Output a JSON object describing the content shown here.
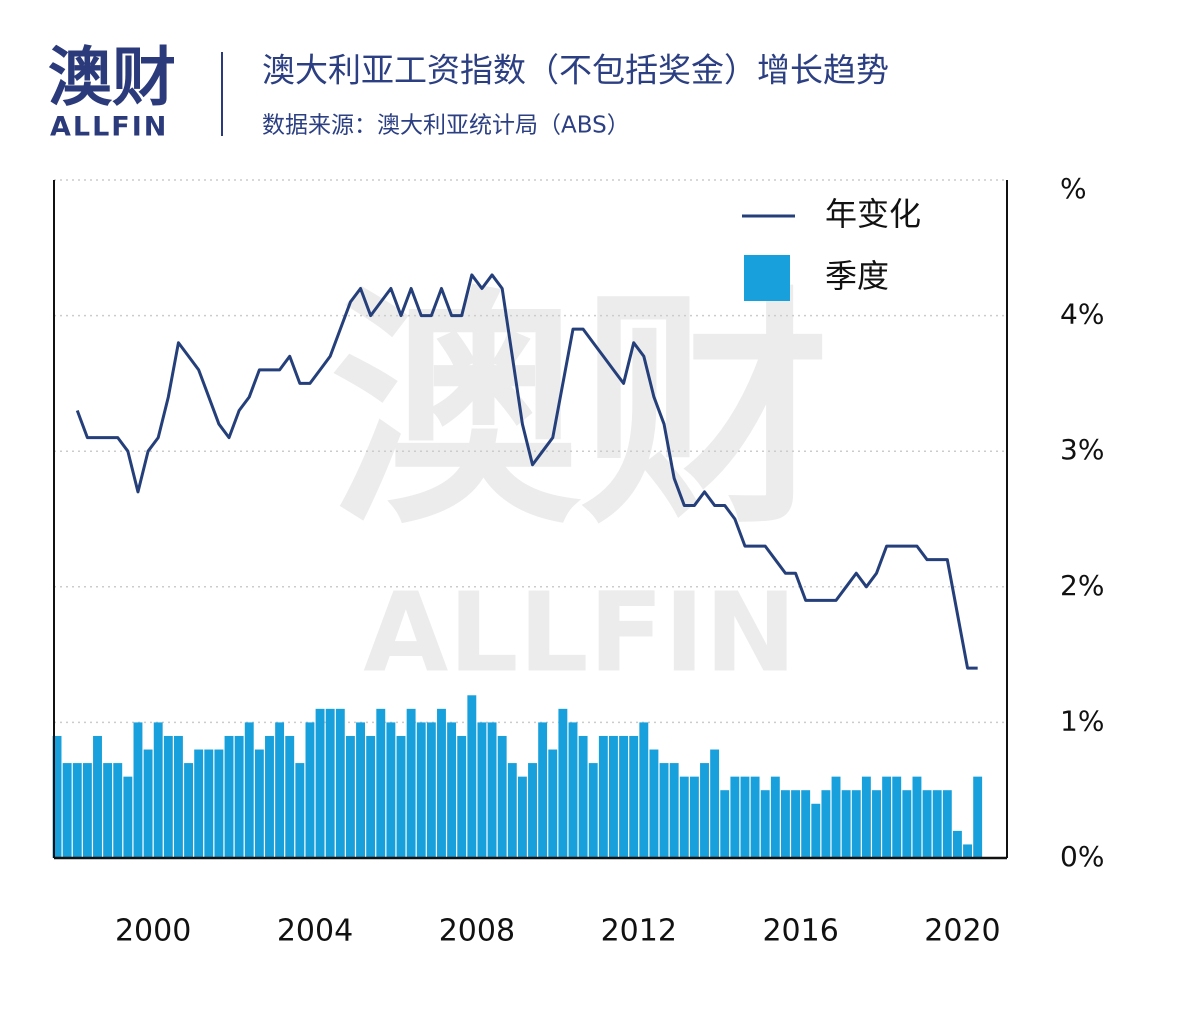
{
  "logo": {
    "name": "澳财",
    "brand": "ALLFIN"
  },
  "chart_data": {
    "type": "bar",
    "title": "澳大利亚工资指数（不包括奖金）增长趋势",
    "subtitle": "数据来源：澳大利亚统计局（ABS）",
    "y_label": "%",
    "x": [
      1997.625,
      1997.875,
      1998.125,
      1998.375,
      1998.625,
      1998.875,
      1999.125,
      1999.375,
      1999.625,
      1999.875,
      2000.125,
      2000.375,
      2000.625,
      2000.875,
      2001.125,
      2001.375,
      2001.625,
      2001.875,
      2002.125,
      2002.375,
      2002.625,
      2002.875,
      2003.125,
      2003.375,
      2003.625,
      2003.875,
      2004.125,
      2004.375,
      2004.625,
      2004.875,
      2005.125,
      2005.375,
      2005.625,
      2005.875,
      2006.125,
      2006.375,
      2006.625,
      2006.875,
      2007.125,
      2007.375,
      2007.625,
      2007.875,
      2008.125,
      2008.375,
      2008.625,
      2008.875,
      2009.125,
      2009.375,
      2009.625,
      2009.875,
      2010.125,
      2010.375,
      2010.625,
      2010.875,
      2011.125,
      2011.375,
      2011.625,
      2011.875,
      2012.125,
      2012.375,
      2012.625,
      2012.875,
      2013.125,
      2013.375,
      2013.625,
      2013.875,
      2014.125,
      2014.375,
      2014.625,
      2014.875,
      2015.125,
      2015.375,
      2015.625,
      2015.875,
      2016.125,
      2016.375,
      2016.625,
      2016.875,
      2017.125,
      2017.375,
      2017.625,
      2017.875,
      2018.125,
      2018.375,
      2018.625,
      2018.875,
      2019.125,
      2019.375,
      2019.625,
      2019.875,
      2020.125,
      2020.375
    ],
    "series": [
      {
        "name": "年变化",
        "type": "line",
        "color": "#253f7a",
        "values": [
          null,
          null,
          3.3,
          3.1,
          3.1,
          3.1,
          3.1,
          3.0,
          2.7,
          3.0,
          3.1,
          3.4,
          3.8,
          3.7,
          3.6,
          3.4,
          3.2,
          3.1,
          3.3,
          3.4,
          3.6,
          3.6,
          3.6,
          3.7,
          3.5,
          3.5,
          3.6,
          3.7,
          3.9,
          4.1,
          4.2,
          4.0,
          4.1,
          4.2,
          4.0,
          4.2,
          4.0,
          4.0,
          4.2,
          4.0,
          4.0,
          4.3,
          4.2,
          4.3,
          4.2,
          3.7,
          3.2,
          2.9,
          3.0,
          3.1,
          3.5,
          3.9,
          3.9,
          3.8,
          3.7,
          3.6,
          3.5,
          3.8,
          3.7,
          3.4,
          3.2,
          2.8,
          2.6,
          2.6,
          2.7,
          2.6,
          2.6,
          2.5,
          2.3,
          2.3,
          2.3,
          2.2,
          2.1,
          2.1,
          1.9,
          1.9,
          1.9,
          1.9,
          2.0,
          2.1,
          2.0,
          2.1,
          2.3,
          2.3,
          2.3,
          2.3,
          2.2,
          2.2,
          2.2,
          1.8,
          1.4,
          1.4
        ]
      },
      {
        "name": "季度",
        "type": "bar",
        "color": "#17a0db",
        "values": [
          0.9,
          0.7,
          0.7,
          0.7,
          0.9,
          0.7,
          0.7,
          0.6,
          1.0,
          0.8,
          1.0,
          0.9,
          0.9,
          0.7,
          0.8,
          0.8,
          0.8,
          0.9,
          0.9,
          1.0,
          0.8,
          0.9,
          1.0,
          0.9,
          0.7,
          1.0,
          1.1,
          1.1,
          1.1,
          0.9,
          1.0,
          0.9,
          1.1,
          1.0,
          0.9,
          1.1,
          1.0,
          1.0,
          1.1,
          1.0,
          0.9,
          1.2,
          1.0,
          1.0,
          0.9,
          0.7,
          0.6,
          0.7,
          1.0,
          0.8,
          1.1,
          1.0,
          0.9,
          0.7,
          0.9,
          0.9,
          0.9,
          0.9,
          1.0,
          0.8,
          0.7,
          0.7,
          0.6,
          0.6,
          0.7,
          0.8,
          0.5,
          0.6,
          0.6,
          0.6,
          0.5,
          0.6,
          0.5,
          0.5,
          0.5,
          0.4,
          0.5,
          0.6,
          0.5,
          0.5,
          0.6,
          0.5,
          0.6,
          0.6,
          0.5,
          0.6,
          0.5,
          0.5,
          0.5,
          0.2,
          0.1,
          0.6
        ]
      }
    ],
    "xlim": [
      1997.55,
      2021.1
    ],
    "xticks": [
      2000,
      2004,
      2008,
      2012,
      2016,
      2020
    ],
    "ylim": [
      0,
      5
    ],
    "yticks": [
      {
        "value": 0,
        "label": "0%"
      },
      {
        "value": 1,
        "label": "1%"
      },
      {
        "value": 2,
        "label": "2%"
      },
      {
        "value": 3,
        "label": "3%"
      },
      {
        "value": 4,
        "label": "4%"
      }
    ],
    "grid": true,
    "legend": "top-right"
  }
}
